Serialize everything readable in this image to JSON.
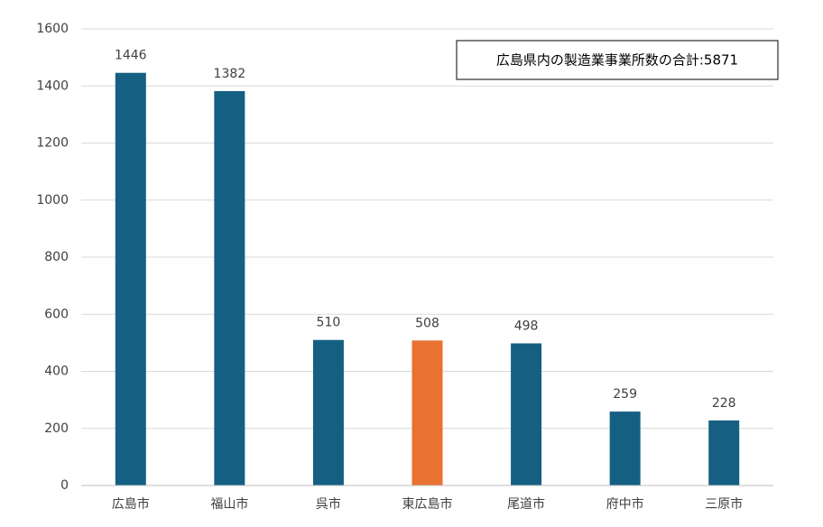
{
  "chart_data": {
    "type": "bar",
    "annotation": "広島県内の製造業事業所数の合計:5871",
    "categories": [
      "広島市",
      "福山市",
      "呉市",
      "東広島市",
      "尾道市",
      "府中市",
      "三原市"
    ],
    "values": [
      1446,
      1382,
      510,
      508,
      498,
      259,
      228
    ],
    "colors": [
      "#156082",
      "#156082",
      "#156082",
      "#e97132",
      "#156082",
      "#156082",
      "#156082"
    ],
    "ylim": [
      0,
      1600
    ],
    "yticks": [
      0,
      200,
      400,
      600,
      800,
      1000,
      1200,
      1400,
      1600
    ],
    "grid": true
  }
}
